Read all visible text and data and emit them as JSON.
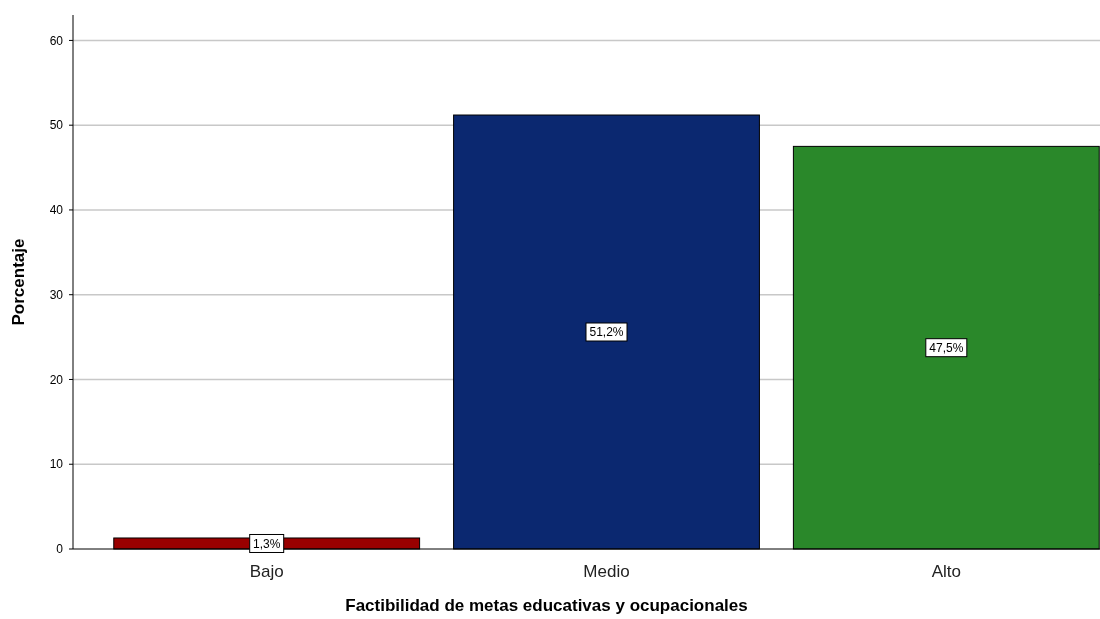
{
  "chart_data": {
    "type": "bar",
    "xlabel": "Factibilidad de metas educativas y ocupacionales",
    "ylabel": "Porcentaje",
    "categories": [
      "Bajo",
      "Medio",
      "Alto"
    ],
    "values": [
      1.3,
      51.2,
      47.5
    ],
    "colors": [
      "#990000",
      "#0b2870",
      "#2a882a"
    ],
    "value_labels": [
      "1,3%",
      "51,2%",
      "47,5%"
    ],
    "ylim": [
      0,
      63
    ],
    "yticks": [
      0,
      10,
      20,
      30,
      40,
      50,
      60
    ],
    "grid": "y"
  }
}
